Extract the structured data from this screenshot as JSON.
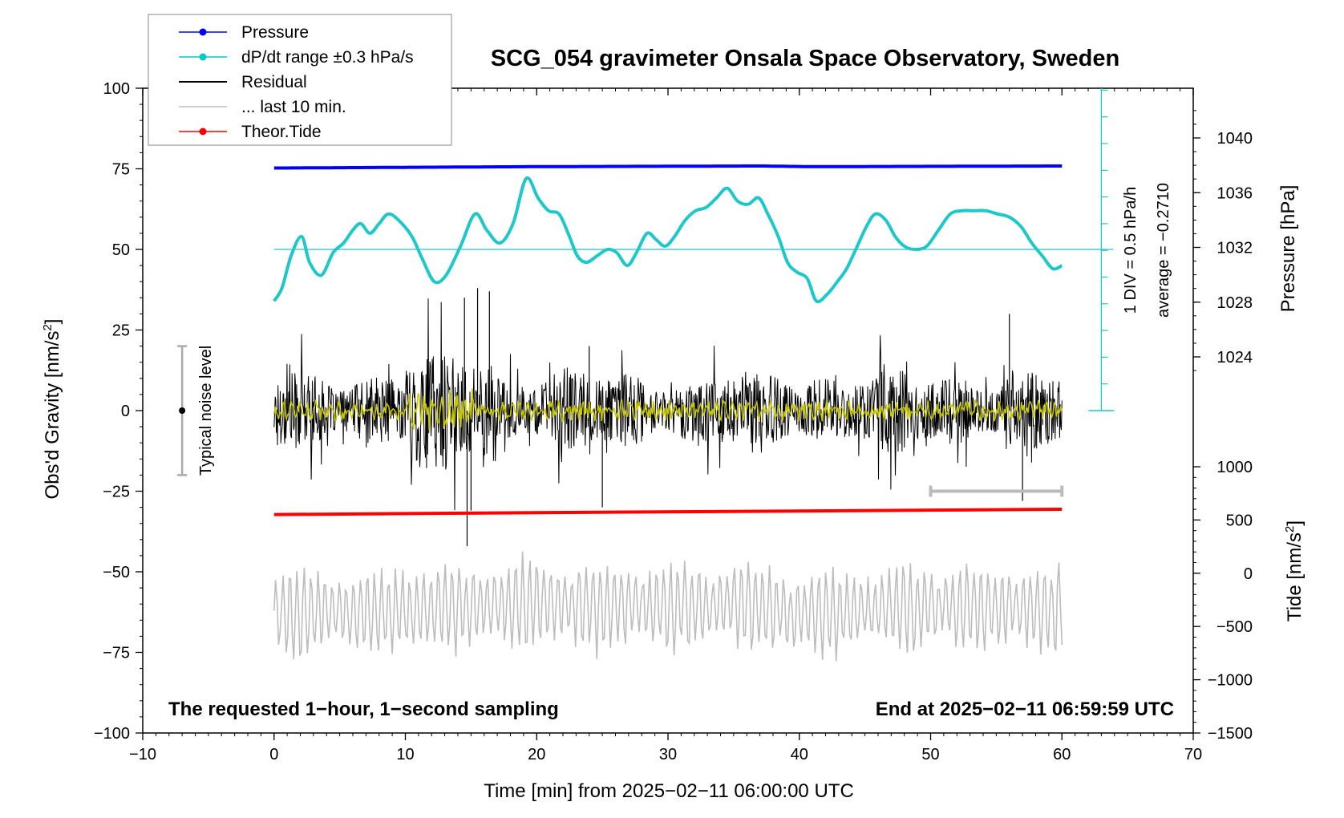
{
  "chart_data": {
    "type": "line",
    "title": "SCG_054 gravimeter Onsala Space Observatory, Sweden",
    "xlabel": "Time [min] from 2025−02−11 06:00:00 UTC",
    "ylabel": "Obs'd Gravity [nm/s",
    "ylabel_sup": "2",
    "ylabel_close": "]",
    "y2label_pressure": "Pressure [hPa]",
    "y2label_tide": "Tide [nm/s",
    "y2label_tide_sup": "2",
    "y2label_tide_close": "]",
    "xlim": [
      -10,
      70
    ],
    "ylim": [
      -100,
      100
    ],
    "x_ticks": [
      "−10",
      "0",
      "10",
      "20",
      "30",
      "40",
      "50",
      "60",
      "70"
    ],
    "y_ticks": [
      "−100",
      "−75",
      "−50",
      "−25",
      "0",
      "25",
      "50",
      "75",
      "100"
    ],
    "pressure_ticks": [
      "1024",
      "1028",
      "1032",
      "1036",
      "1040"
    ],
    "tide_ticks": [
      "−1500",
      "−1000",
      "−500",
      "0",
      "500",
      "1000"
    ],
    "legend": [
      {
        "label": "Pressure",
        "color": "#0000ff",
        "marker": true
      },
      {
        "label": "dP/dt range ±0.3 hPa/s",
        "color": "#00c8c8",
        "marker": true
      },
      {
        "label": "Residual",
        "color": "#000000",
        "marker": false
      },
      {
        "label": "... last 10 min.",
        "color": "#bdbdbd",
        "marker": false
      },
      {
        "label": "Theor.Tide",
        "color": "#ff0000",
        "marker": true
      }
    ],
    "annotations": {
      "noise": "Typical noise level",
      "div": "1 DIV = 0.5 hPa/h",
      "average": "average = −0.2710",
      "bottom_left": "The requested 1−hour, 1−second sampling",
      "bottom_right": "End at 2025−02−11 06:59:59 UTC"
    },
    "colors": {
      "pressure": "#0000ff",
      "dpdt": "#1ec8c8",
      "residual": "#000000",
      "filtered": "#c8c800",
      "last10": "#bdbdbd",
      "tide": "#ff0000"
    },
    "series": [
      {
        "name": "Pressure",
        "y_units": "hPa",
        "x": [
          0,
          19.5,
          37,
          41,
          60
        ],
        "values": [
          1037.8,
          1037.9,
          1037.95,
          1037.9,
          1037.95
        ]
      },
      {
        "name": "dP/dt range ±0.3 hPa/s",
        "y_units": "gravity-axis",
        "x": [
          0,
          0.6,
          1.3,
          2.1,
          2.7,
          3.6,
          4.5,
          5.3,
          6.0,
          6.6,
          7.3,
          8.0,
          8.7,
          9.5,
          10.5,
          11.3,
          12.2,
          13.1,
          14.2,
          15.3,
          16.2,
          17.2,
          18.2,
          19.2,
          20.1,
          20.9,
          21.7,
          22.4,
          23.1,
          23.8,
          24.6,
          25.4,
          26.1,
          26.9,
          27.6,
          28.4,
          29.1,
          29.8,
          30.5,
          31.3,
          32.1,
          32.9,
          33.7,
          34.5,
          35.3,
          36.1,
          36.9,
          37.6,
          38.4,
          39.1,
          39.8,
          40.6,
          41.3,
          42.1,
          42.9,
          43.6,
          44.3,
          45.1,
          45.8,
          46.6,
          47.3,
          48.0,
          48.8,
          49.7,
          50.6,
          51.5,
          52.4,
          53.3,
          54.2,
          55.1,
          56.0,
          56.9,
          57.7,
          58.5,
          59.3,
          60.0
        ],
        "values": [
          34,
          38,
          48,
          54,
          46,
          42,
          49,
          52,
          56,
          58,
          55,
          58,
          61,
          59,
          54,
          47,
          40,
          42,
          51,
          61,
          56,
          52,
          58,
          72,
          66,
          62,
          61,
          55,
          48,
          46,
          48,
          50,
          49,
          45,
          49,
          55,
          53,
          51,
          54,
          59,
          62,
          63,
          66,
          69,
          65,
          64,
          66,
          61,
          54,
          46,
          43,
          41,
          34,
          36,
          40,
          44,
          50,
          57,
          61,
          59,
          54,
          51,
          50,
          51,
          56,
          61,
          62,
          62,
          62,
          61,
          60,
          57,
          52,
          48,
          44,
          45
        ]
      },
      {
        "name": "Residual",
        "y_units": "nm/s2",
        "x": [
          0,
          5,
          10,
          13,
          14.5,
          15,
          15.5,
          20,
          24,
          25,
          30,
          40,
          50,
          56,
          57,
          60
        ],
        "values": [
          0,
          8,
          -6,
          12,
          35,
          -31,
          38,
          10,
          20,
          -30,
          8,
          -8,
          6,
          30,
          -28,
          0
        ]
      },
      {
        "name": "... last 10 min.",
        "y_units": "nm/s2",
        "x": [
          0,
          10,
          20,
          30,
          36,
          40,
          50,
          60
        ],
        "values": [
          -63,
          -62,
          -60,
          -61,
          -60,
          -63,
          -61,
          -62
        ]
      },
      {
        "name": "Theor.Tide",
        "y_units": "nm/s2",
        "x": [
          0,
          20,
          40,
          60
        ],
        "values": [
          551,
          569,
          584,
          601
        ]
      }
    ]
  }
}
